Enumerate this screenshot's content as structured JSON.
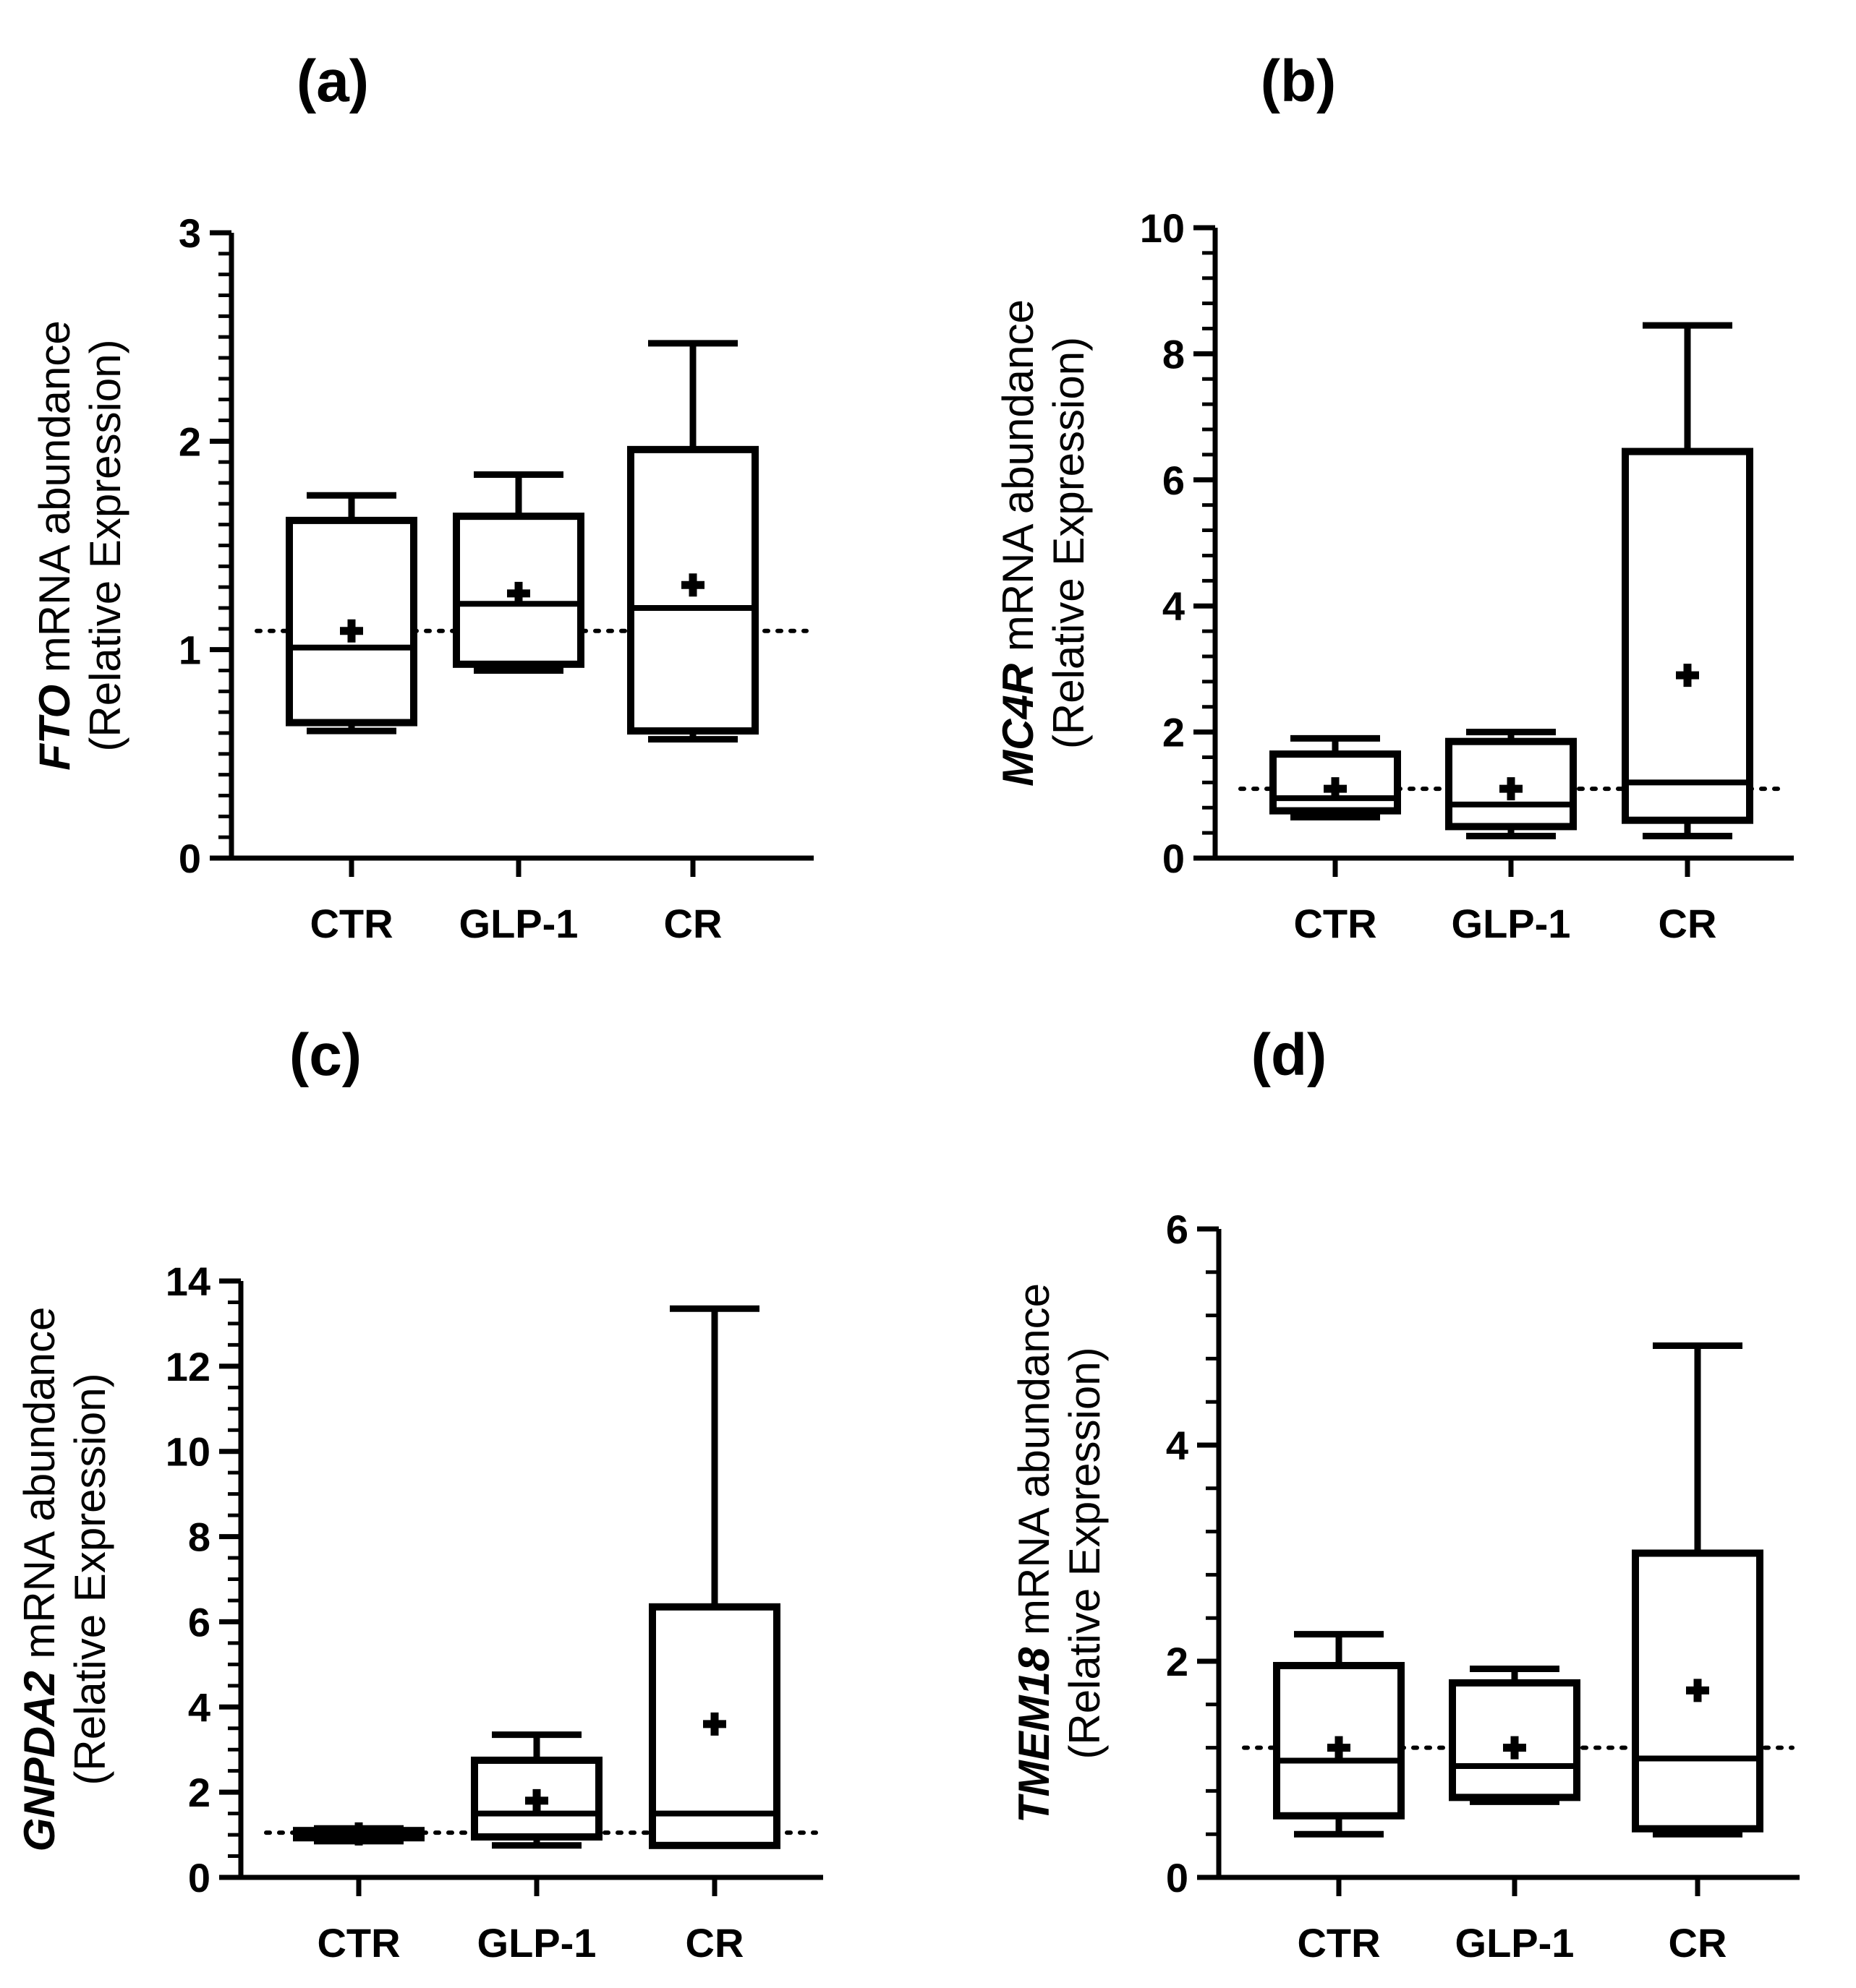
{
  "figure": {
    "colors": {
      "stroke": "#000000",
      "background": "#ffffff"
    }
  },
  "chart_data": [
    {
      "id": "a",
      "panel_label": "(a)",
      "type": "box",
      "gene": "FTO",
      "ylabel_rest": " mRNA abundance",
      "ylabel_line2": "(Relative Expression)",
      "categories": [
        "CTR",
        "GLP-1",
        "CR"
      ],
      "ylim": [
        0,
        3
      ],
      "yticks": [
        0,
        1,
        2,
        3
      ],
      "ytick_labels": [
        "0",
        "1",
        "2",
        "3"
      ],
      "minor_step": 0.1,
      "reference_line": 1.09,
      "boxes": [
        {
          "category": "CTR",
          "min": 0.61,
          "q1": 0.65,
          "median": 1.01,
          "q3": 1.62,
          "max": 1.74,
          "mean": 1.09
        },
        {
          "category": "GLP-1",
          "min": 0.9,
          "q1": 0.93,
          "median": 1.22,
          "q3": 1.64,
          "max": 1.84,
          "mean": 1.27
        },
        {
          "category": "CR",
          "min": 0.57,
          "q1": 0.61,
          "median": 1.2,
          "q3": 1.96,
          "max": 2.47,
          "mean": 1.31
        }
      ]
    },
    {
      "id": "b",
      "panel_label": "(b)",
      "type": "box",
      "gene": "MC4R",
      "ylabel_rest": " mRNA abundance",
      "ylabel_line2": "(Relative Expression)",
      "categories": [
        "CTR",
        "GLP-1",
        "CR"
      ],
      "ylim": [
        0,
        10
      ],
      "yticks": [
        0,
        2,
        4,
        6,
        8,
        10
      ],
      "ytick_labels": [
        "0",
        "2",
        "4",
        "6",
        "8",
        "10"
      ],
      "minor_step": 0.4,
      "reference_line": 1.1,
      "boxes": [
        {
          "category": "CTR",
          "min": 0.65,
          "q1": 0.75,
          "median": 0.95,
          "q3": 1.65,
          "max": 1.9,
          "mean": 1.1
        },
        {
          "category": "GLP-1",
          "min": 0.35,
          "q1": 0.5,
          "median": 0.85,
          "q3": 1.85,
          "max": 2.0,
          "mean": 1.1
        },
        {
          "category": "CR",
          "min": 0.35,
          "q1": 0.6,
          "median": 1.2,
          "q3": 6.45,
          "max": 8.45,
          "mean": 2.9
        }
      ]
    },
    {
      "id": "c",
      "panel_label": "(c)",
      "type": "box",
      "gene": "GNPDA2",
      "ylabel_rest": " mRNA abundance",
      "ylabel_line2": "(Relative Expression)",
      "categories": [
        "CTR",
        "GLP-1",
        "CR"
      ],
      "ylim": [
        0,
        14
      ],
      "yticks": [
        0,
        2,
        4,
        6,
        8,
        10,
        12,
        14
      ],
      "ytick_labels": [
        "0",
        "2",
        "4",
        "6",
        "8",
        "10",
        "12",
        "14"
      ],
      "minor_step": 0.5,
      "reference_line": 1.05,
      "boxes": [
        {
          "category": "CTR",
          "min": 0.85,
          "q1": 0.93,
          "median": 1.03,
          "q3": 1.1,
          "max": 1.15,
          "mean": 1.02
        },
        {
          "category": "GLP-1",
          "min": 0.75,
          "q1": 0.95,
          "median": 1.5,
          "q3": 2.75,
          "max": 3.35,
          "mean": 1.8
        },
        {
          "category": "CR",
          "min": 0.75,
          "q1": 0.75,
          "median": 1.5,
          "q3": 6.35,
          "max": 13.35,
          "mean": 3.6
        }
      ]
    },
    {
      "id": "d",
      "panel_label": "(d)",
      "type": "box",
      "gene": "TMEM18",
      "ylabel_rest": " mRNA abundance",
      "ylabel_line2": "(Relative Expression)",
      "categories": [
        "CTR",
        "GLP-1",
        "CR"
      ],
      "ylim": [
        0,
        6
      ],
      "yticks": [
        0,
        2,
        4,
        6
      ],
      "ytick_labels": [
        "0",
        "2",
        "4",
        "6"
      ],
      "minor_step": 0.4,
      "reference_line": 1.2,
      "boxes": [
        {
          "category": "CTR",
          "min": 0.4,
          "q1": 0.57,
          "median": 1.08,
          "q3": 1.96,
          "max": 2.25,
          "mean": 1.2
        },
        {
          "category": "GLP-1",
          "min": 0.7,
          "q1": 0.74,
          "median": 1.03,
          "q3": 1.8,
          "max": 1.93,
          "mean": 1.2
        },
        {
          "category": "CR",
          "min": 0.4,
          "q1": 0.45,
          "median": 1.1,
          "q3": 3.0,
          "max": 4.92,
          "mean": 1.73
        }
      ]
    }
  ]
}
